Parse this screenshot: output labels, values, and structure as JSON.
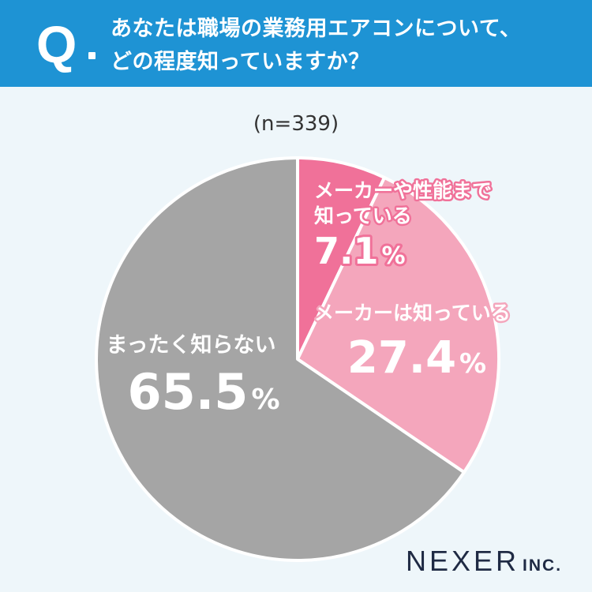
{
  "header": {
    "q_mark": "Q",
    "question_line1": "あなたは職場の業務用エアコンについて、",
    "question_line2": "どの程度知っていますか？"
  },
  "sample": "(n=339)",
  "brand": {
    "name": "NEXER",
    "suffix": "INC."
  },
  "colors": {
    "header_bg": "#1e93d4",
    "background": "#eef6fa",
    "slice_1": "#f07199",
    "slice_2": "#f4a6bc",
    "slice_3": "#a5a5a5",
    "label_1": "#f07199",
    "label_2": "#f4a6bc"
  },
  "chart_data": {
    "type": "pie",
    "start": "12 o'clock",
    "direction": "clockwise",
    "slices": [
      {
        "label_line1": "メーカーや性能まで",
        "label_line2": "知っている",
        "value": 7.1,
        "value_text": "7.1",
        "unit": "%"
      },
      {
        "label_line1": "メーカーは知っている",
        "label_line2": "",
        "value": 27.4,
        "value_text": "27.4",
        "unit": "%"
      },
      {
        "label_line1": "まったく知らない",
        "label_line2": "",
        "value": 65.5,
        "value_text": "65.5",
        "unit": "%"
      }
    ]
  }
}
